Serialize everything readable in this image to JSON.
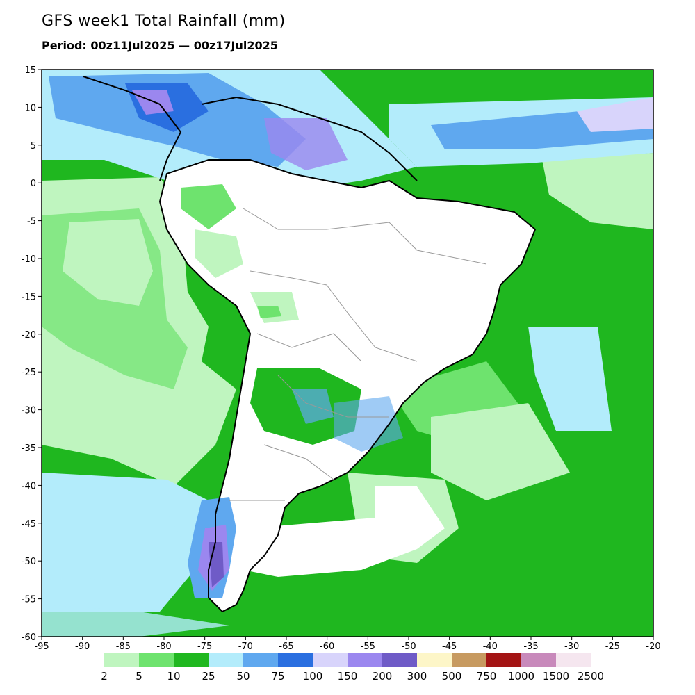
{
  "header": {
    "title": "GFS week1 Total Rainfall (mm)",
    "period": "Period: 00z11Jul2025 — 00z17Jul2025"
  },
  "map": {
    "lon_range": [
      -95,
      -20
    ],
    "lat_range": [
      -60,
      15
    ],
    "lon_ticks": [
      "-95",
      "-90",
      "-85",
      "-80",
      "-75",
      "-70",
      "-65",
      "-60",
      "-55",
      "-50",
      "-45",
      "-40",
      "-35",
      "-30",
      "-25",
      "-20"
    ],
    "lat_ticks": [
      "15",
      "10",
      "5",
      "0",
      "-5",
      "-10",
      "-15",
      "-20",
      "-25",
      "-30",
      "-35",
      "-40",
      "-45",
      "-50",
      "-55",
      "-60"
    ]
  },
  "legend": {
    "colors": [
      "#bff5bf",
      "#6ee36e",
      "#1fb71f",
      "#b3ecfb",
      "#5fa8ef",
      "#2a6fe0",
      "#d8d4fb",
      "#9b87ef",
      "#6f5bc7",
      "#fdf6c8",
      "#c79a60",
      "#a41414",
      "#c889bb",
      "#f5e6ef"
    ],
    "labels": [
      "2",
      "5",
      "10",
      "25",
      "50",
      "75",
      "100",
      "150",
      "200",
      "300",
      "500",
      "750",
      "1000",
      "1500",
      "2500"
    ]
  }
}
